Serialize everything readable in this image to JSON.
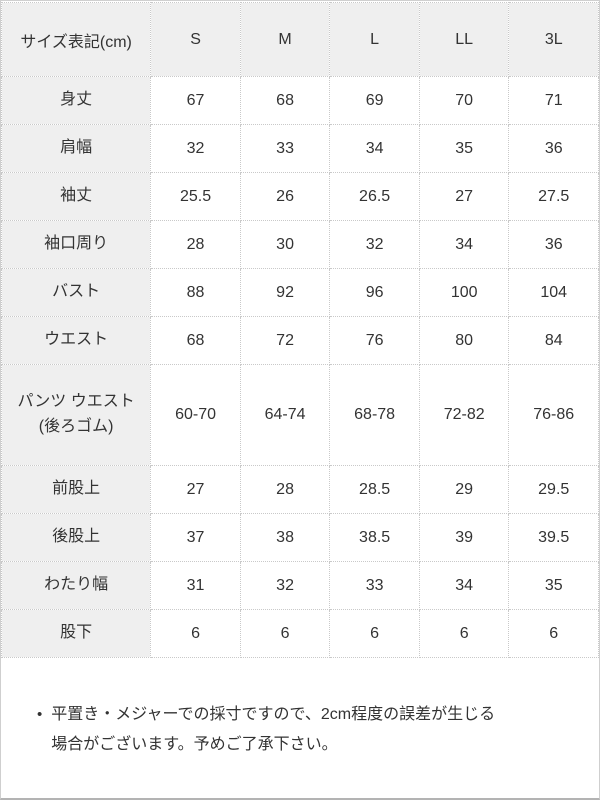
{
  "table": {
    "header": [
      "サイズ表記(cm)",
      "S",
      "M",
      "L",
      "LL",
      "3L"
    ],
    "rows": [
      {
        "label": "身丈",
        "values": [
          "67",
          "68",
          "69",
          "70",
          "71"
        ]
      },
      {
        "label": "肩幅",
        "values": [
          "32",
          "33",
          "34",
          "35",
          "36"
        ]
      },
      {
        "label": "袖丈",
        "values": [
          "25.5",
          "26",
          "26.5",
          "27",
          "27.5"
        ]
      },
      {
        "label": "袖口周り",
        "values": [
          "28",
          "30",
          "32",
          "34",
          "36"
        ]
      },
      {
        "label": "バスト",
        "values": [
          "88",
          "92",
          "96",
          "100",
          "104"
        ]
      },
      {
        "label": "ウエスト",
        "values": [
          "68",
          "72",
          "76",
          "80",
          "84"
        ]
      },
      {
        "label": "パンツ ウエスト\n(後ろゴム)",
        "values": [
          "60-70",
          "64-74",
          "68-78",
          "72-82",
          "76-86"
        ]
      },
      {
        "label": "前股上",
        "values": [
          "27",
          "28",
          "28.5",
          "29",
          "29.5"
        ]
      },
      {
        "label": "後股上",
        "values": [
          "37",
          "38",
          "38.5",
          "39",
          "39.5"
        ]
      },
      {
        "label": "わたり幅",
        "values": [
          "31",
          "32",
          "33",
          "34",
          "35"
        ]
      },
      {
        "label": "股下",
        "values": [
          "6",
          "6",
          "6",
          "6",
          "6"
        ]
      }
    ]
  },
  "note": {
    "bullet": "•",
    "text": "平置き・メジャーでの採寸ですので、2cm程度の誤差が生じる\n場合がございます。予めご了承下さい。"
  },
  "colors": {
    "header_bg": "#efefef",
    "cell_border": "#c9c9c9",
    "text": "#333333"
  }
}
